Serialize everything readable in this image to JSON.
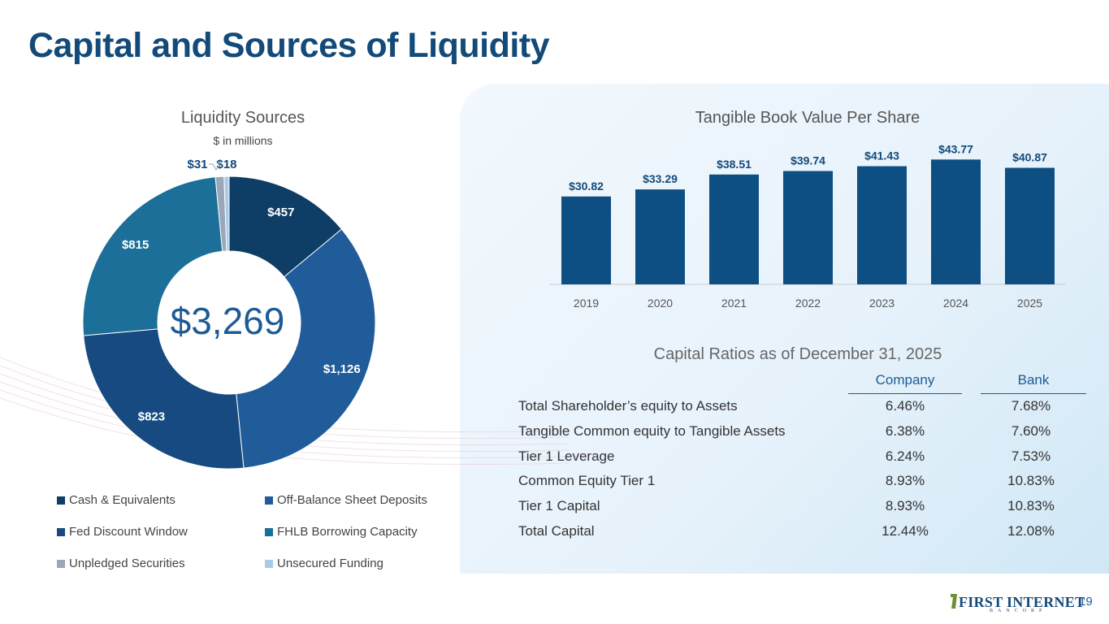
{
  "title": "Capital and Sources of Liquidity",
  "page_number": "19",
  "logo": {
    "main": "FIRST INTERNET",
    "sub": "BANCORP"
  },
  "colors": {
    "navy": "#0e3d66",
    "blue": "#1f5c99",
    "dark_navy": "#174a80",
    "teal": "#1b6f98",
    "gray": "#9aa7b8",
    "light_blue": "#a9cbe8",
    "bar": "#0e4f83"
  },
  "chart_data": [
    {
      "type": "pie",
      "title": "Liquidity Sources",
      "subtitle": "$ in millions",
      "center_label": "$3,269",
      "slices": [
        {
          "name": "Cash & Equivalents",
          "value": 457,
          "label": "$457",
          "color": "#0e3d66"
        },
        {
          "name": "Off-Balance Sheet Deposits",
          "value": 1126,
          "label": "$1,126",
          "color": "#1f5c99"
        },
        {
          "name": "Fed Discount Window",
          "value": 823,
          "label": "$823",
          "color": "#174a80"
        },
        {
          "name": "FHLB Borrowing Capacity",
          "value": 815,
          "label": "$815",
          "color": "#1b6f98"
        },
        {
          "name": "Unpledged Securities",
          "value": 31,
          "label": "$31",
          "color": "#9aa7b8"
        },
        {
          "name": "Unsecured Funding",
          "value": 18,
          "label": "$18",
          "color": "#a9cbe8"
        }
      ],
      "legend_placement": "bottom"
    },
    {
      "type": "bar",
      "title": "Tangible Book Value Per Share",
      "categories": [
        "2019",
        "2020",
        "2021",
        "2022",
        "2023",
        "2024",
        "2025"
      ],
      "values": [
        30.82,
        33.29,
        38.51,
        39.74,
        41.43,
        43.77,
        40.87
      ],
      "value_labels": [
        "$30.82",
        "$33.29",
        "$38.51",
        "$39.74",
        "$41.43",
        "$43.77",
        "$40.87"
      ],
      "ylim": [
        0,
        47
      ],
      "grid": false
    },
    {
      "type": "table",
      "title": "Capital Ratios as of December 31, 2025",
      "columns": [
        "Company",
        "Bank"
      ],
      "rows": [
        {
          "label": "Total Shareholder’s equity to Assets",
          "company": "6.46%",
          "bank": "7.68%"
        },
        {
          "label": "Tangible Common equity to Tangible Assets",
          "company": "6.38%",
          "bank": "7.60%"
        },
        {
          "label": "Tier 1 Leverage",
          "company": "6.24%",
          "bank": "7.53%"
        },
        {
          "label": "Common Equity Tier 1",
          "company": "8.93%",
          "bank": "10.83%"
        },
        {
          "label": "Tier 1 Capital",
          "company": "8.93%",
          "bank": "10.83%"
        },
        {
          "label": "Total Capital",
          "company": "12.44%",
          "bank": "12.08%"
        }
      ]
    }
  ]
}
